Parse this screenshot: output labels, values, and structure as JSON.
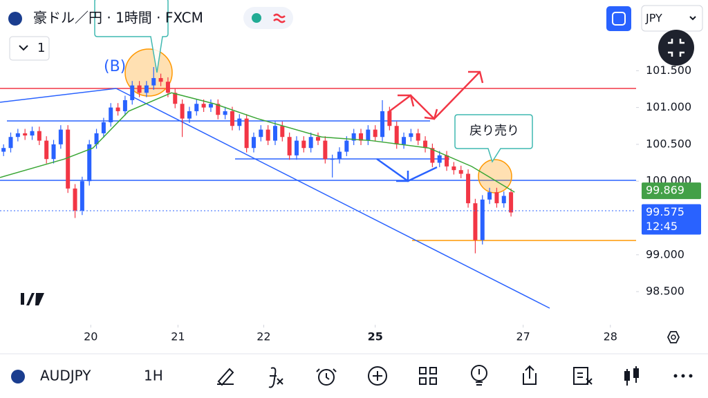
{
  "header": {
    "symbol_title": "豪ドル／円 · 1時間 · FXCM",
    "interval_button": "1",
    "currency": "JPY"
  },
  "chart_data": {
    "type": "candlestick",
    "x": [
      0.5,
      1.5,
      2.5,
      3.5,
      4.5,
      5.5,
      6.5,
      7.5,
      8.5,
      9.5,
      10.5,
      11.5,
      12.5,
      13.5,
      14.5,
      15.5,
      16.5,
      17.5,
      18.5,
      19.5,
      20.5,
      21.5,
      22.5,
      23.5,
      24.5,
      25.5,
      26.5,
      27.5,
      28.5,
      29.5,
      30.5,
      31.5,
      32.5,
      33.5,
      34.5,
      35.5,
      36.5,
      37.5,
      38.5,
      39.5,
      40.5,
      41.5,
      42.5,
      43.5,
      44.5,
      45.5,
      46.5,
      47.5,
      48.5,
      49.5,
      50.5,
      51.5,
      52.5,
      53.5,
      54.5,
      55.5,
      56.5,
      57.5,
      58.5,
      59.5,
      60.5,
      61.5,
      62.5,
      63.5,
      64.5,
      65.5,
      66.5,
      67.5,
      68.5,
      69.5,
      70.5,
      71.5
    ],
    "open": [
      100.4,
      100.45,
      100.6,
      100.65,
      100.62,
      100.68,
      100.55,
      100.3,
      100.5,
      100.7,
      99.9,
      99.6,
      100.0,
      100.5,
      100.65,
      100.8,
      101.0,
      100.95,
      101.1,
      101.3,
      101.2,
      101.3,
      101.4,
      101.35,
      101.2,
      101.05,
      100.85,
      100.95,
      101.05,
      101.0,
      101.05,
      100.9,
      100.95,
      100.75,
      100.85,
      100.45,
      100.6,
      100.7,
      100.55,
      100.75,
      100.6,
      100.35,
      100.55,
      100.45,
      100.6,
      100.55,
      100.3,
      100.3,
      100.4,
      100.55,
      100.65,
      100.55,
      100.7,
      100.6,
      100.95,
      100.75,
      100.5,
      100.6,
      100.65,
      100.55,
      100.45,
      100.25,
      100.35,
      100.2,
      100.15,
      100.1,
      99.7,
      99.2,
      99.75,
      99.85,
      99.7,
      99.85
    ],
    "high": [
      100.5,
      100.66,
      100.71,
      100.71,
      100.74,
      100.74,
      100.61,
      100.56,
      100.76,
      100.76,
      99.96,
      100.06,
      100.56,
      100.71,
      100.86,
      101.06,
      101.06,
      101.16,
      101.36,
      101.36,
      101.36,
      101.55,
      101.46,
      101.41,
      101.26,
      101.11,
      101.01,
      101.11,
      101.11,
      101.11,
      101.11,
      101.01,
      101.01,
      100.91,
      100.91,
      100.66,
      100.76,
      100.76,
      100.81,
      100.81,
      100.66,
      100.61,
      100.61,
      100.66,
      100.66,
      100.61,
      100.36,
      100.46,
      100.61,
      100.71,
      100.71,
      100.76,
      100.76,
      101.1,
      101.01,
      100.81,
      100.66,
      100.71,
      100.71,
      100.61,
      100.51,
      100.41,
      100.41,
      100.26,
      100.21,
      100.16,
      99.76,
      99.81,
      99.91,
      99.91,
      99.86,
      99.9
    ],
    "low": [
      100.34,
      100.39,
      100.54,
      100.56,
      100.56,
      100.49,
      100.24,
      100.24,
      100.44,
      99.84,
      99.5,
      99.54,
      99.94,
      100.44,
      100.59,
      100.74,
      100.89,
      100.89,
      101.04,
      101.14,
      101.14,
      101.24,
      101.29,
      101.14,
      100.99,
      100.6,
      100.79,
      100.89,
      100.94,
      100.94,
      100.84,
      100.84,
      100.69,
      100.69,
      100.39,
      100.39,
      100.54,
      100.49,
      100.49,
      100.54,
      100.29,
      100.29,
      100.39,
      100.39,
      100.49,
      100.24,
      100.05,
      100.24,
      100.34,
      100.49,
      100.49,
      100.49,
      100.54,
      100.54,
      100.69,
      100.44,
      100.44,
      100.54,
      100.49,
      100.39,
      100.19,
      100.19,
      100.14,
      100.09,
      100.04,
      99.64,
      99.02,
      99.14,
      99.69,
      99.64,
      99.64,
      99.52
    ],
    "close": [
      100.45,
      100.6,
      100.65,
      100.62,
      100.68,
      100.55,
      100.3,
      100.5,
      100.7,
      99.9,
      99.6,
      100.0,
      100.5,
      100.65,
      100.8,
      101.0,
      100.95,
      101.1,
      101.3,
      101.2,
      101.3,
      101.4,
      101.35,
      101.2,
      101.05,
      100.85,
      100.95,
      101.05,
      101.0,
      101.05,
      100.9,
      100.95,
      100.75,
      100.85,
      100.45,
      100.6,
      100.7,
      100.55,
      100.75,
      100.6,
      100.35,
      100.55,
      100.45,
      100.6,
      100.55,
      100.3,
      100.3,
      100.4,
      100.55,
      100.65,
      100.55,
      100.7,
      100.6,
      100.95,
      100.75,
      100.5,
      100.6,
      100.65,
      100.55,
      100.45,
      100.25,
      100.35,
      100.2,
      100.15,
      100.1,
      99.7,
      99.2,
      99.75,
      99.85,
      99.7,
      99.8,
      99.575
    ],
    "up_color": "#2962ff",
    "down_color": "#f23645",
    "series": [
      {
        "type": "line",
        "color": "#3aa635",
        "x": [
          0,
          9,
          13,
          18,
          24,
          30,
          36,
          45,
          52,
          60,
          66,
          72
        ],
        "values": [
          100.05,
          100.3,
          100.45,
          100.95,
          101.2,
          101.05,
          100.85,
          100.6,
          100.55,
          100.45,
          100.2,
          99.85
        ]
      }
    ],
    "xlim": [
      0,
      89
    ],
    "ylim": [
      98.05,
      102.46
    ],
    "xticks": [
      {
        "value": 12.7,
        "label": "20"
      },
      {
        "value": 24.9,
        "label": "21"
      },
      {
        "value": 36.9,
        "label": "22"
      },
      {
        "value": 52.5,
        "label": "25"
      },
      {
        "value": 73.2,
        "label": "27"
      },
      {
        "value": 85.4,
        "label": "28"
      }
    ],
    "yticks": [
      {
        "value": 101.5,
        "label": "101.500"
      },
      {
        "value": 101.0,
        "label": "101.000"
      },
      {
        "value": 100.5,
        "label": "100.500"
      },
      {
        "value": 100.0,
        "label": "100.000"
      },
      {
        "value": 99.0,
        "label": "99.000"
      },
      {
        "value": 98.5,
        "label": "98.500"
      }
    ],
    "price_labels": [
      {
        "value": 99.869,
        "color": "#43a047"
      },
      {
        "value": 99.575,
        "color": "#2962ff",
        "countdown": "12:45"
      }
    ],
    "annotations": [
      "(B)",
      "戻り売り"
    ]
  },
  "toolbar": {
    "symbol": "AUDJPY",
    "interval": "1H"
  }
}
